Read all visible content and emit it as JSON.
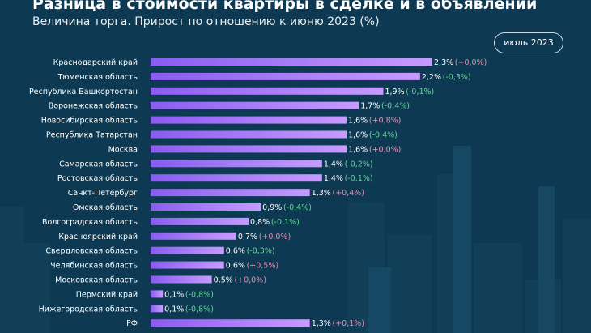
{
  "header": {
    "title": "Разница в стоимости квартиры в сделке и в объявлении",
    "subtitle": "Величина торга. Прирост по отношению к июню 2023 (%)",
    "date_badge": "июль 2023"
  },
  "colors": {
    "background": "#0d3a52",
    "bar_start": "#8a5cf0",
    "bar_end": "#c79bff",
    "change_positive": "#e58fb2",
    "change_negative": "#62d39a"
  },
  "chart_data": {
    "type": "bar",
    "orientation": "horizontal",
    "categories": [
      "Краснодарский край",
      "Тюменская область",
      "Республика Башкортостан",
      "Воронежская область",
      "Новосибирская область",
      "Республика Татарстан",
      "Москва",
      "Самарская область",
      "Ростовская область",
      "Санкт-Петербург",
      "Омская область",
      "Волгоградская область",
      "Красноярский край",
      "Свердловская область",
      "Челябинская область",
      "Московская область",
      "Пермский край",
      "Нижегородская область",
      "РФ"
    ],
    "values": [
      2.3,
      2.2,
      1.9,
      1.7,
      1.6,
      1.6,
      1.6,
      1.4,
      1.4,
      1.3,
      0.9,
      0.8,
      0.7,
      0.6,
      0.6,
      0.5,
      0.1,
      0.1,
      1.3
    ],
    "value_labels": [
      "2,3%",
      "2,2%",
      "1,9%",
      "1,7%",
      "1,6%",
      "1,6%",
      "1,6%",
      "1,4%",
      "1,4%",
      "1,3%",
      "0,9%",
      "0,8%",
      "0,7%",
      "0,6%",
      "0,6%",
      "0,5%",
      "0,1%",
      "0,1%",
      "1,3%"
    ],
    "change_labels": [
      "(+0,0%)",
      "(-0,3%)",
      "(-0,1%)",
      "(-0,4%)",
      "(+0,8%)",
      "(-0,4%)",
      "(+0,0%)",
      "(-0,2%)",
      "(-0,1%)",
      "(+0,4%)",
      "(-0,4%)",
      "(-0,1%)",
      "(+0,0%)",
      "(-0,3%)",
      "(+0,5%)",
      "(+0,0%)",
      "(-0,8%)",
      "(-0,8%)",
      "(+0,1%)"
    ],
    "changes": [
      0.0,
      -0.3,
      -0.1,
      -0.4,
      0.8,
      -0.4,
      0.0,
      -0.2,
      -0.1,
      0.4,
      -0.4,
      -0.1,
      0.0,
      -0.3,
      0.5,
      0.0,
      -0.8,
      -0.8,
      0.1
    ],
    "xlim": [
      0,
      2.3
    ],
    "title": "Разница в стоимости квартиры в сделке и в объявлении",
    "subtitle": "Величина торга. Прирост по отношению к июню 2023 (%)",
    "xlabel": "",
    "ylabel": "",
    "grid": false,
    "legend": "none"
  }
}
